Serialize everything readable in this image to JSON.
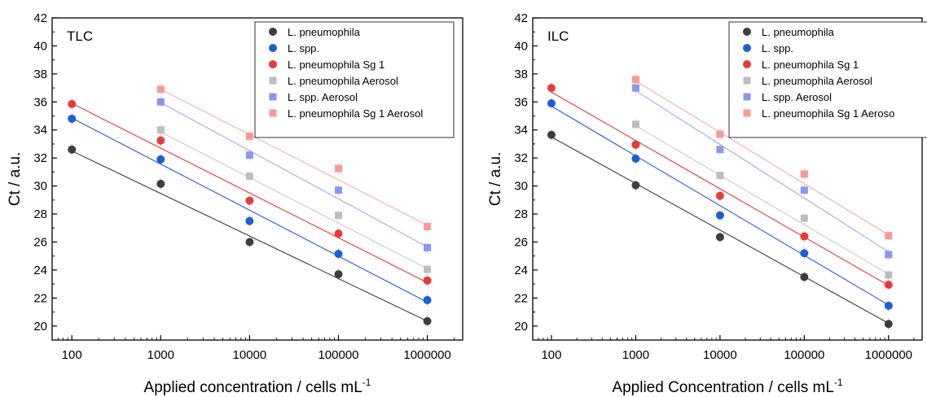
{
  "chart_data": [
    {
      "type": "scatter",
      "panel_label": "TLC",
      "xlabel": "Applied concentration / cells mL",
      "xlabel_sup": "-1",
      "ylabel": "Ct / a.u.",
      "x_scale": "log",
      "x_ticks": [
        100,
        1000,
        10000,
        100000,
        1000000
      ],
      "x_tick_labels": [
        "100",
        "1000",
        "10000",
        "100000",
        "1000000"
      ],
      "xlim": [
        60,
        2500000
      ],
      "ylim": [
        19,
        42
      ],
      "y_ticks": [
        20,
        22,
        24,
        26,
        28,
        30,
        32,
        34,
        36,
        38,
        40,
        42
      ],
      "legend_position": "top-right",
      "series": [
        {
          "name": "L. pneumophila",
          "marker": "circle",
          "color": "#3d3d3d",
          "line_color": "#3d3d3d",
          "x": [
            100,
            1000,
            10000,
            100000,
            1000000
          ],
          "y": [
            32.6,
            30.15,
            26.0,
            23.7,
            20.35
          ],
          "fit": [
            32.5,
            20.35
          ]
        },
        {
          "name": "L. spp.",
          "marker": "circle",
          "color": "#1a5fd6",
          "line_color": "#2a55e8",
          "x": [
            100,
            1000,
            10000,
            100000,
            1000000
          ],
          "y": [
            34.8,
            31.9,
            27.5,
            25.15,
            21.85
          ],
          "fit": [
            34.85,
            21.7
          ]
        },
        {
          "name": "L. pneumophila Sg 1",
          "marker": "circle",
          "color": "#e8393c",
          "line_color": "#e8393c",
          "x": [
            100,
            1000,
            10000,
            100000,
            1000000
          ],
          "y": [
            35.85,
            33.25,
            28.95,
            26.6,
            23.25
          ],
          "fit": [
            35.9,
            23.1
          ]
        },
        {
          "name": "L. pneumophila  Aerosol",
          "marker": "square",
          "color": "#bdbdbd",
          "line_color": "#c9c9c9",
          "x": [
            1000,
            10000,
            100000,
            1000000
          ],
          "y": [
            34.0,
            30.7,
            27.9,
            24.05
          ],
          "fit": [
            33.85,
            24.1
          ]
        },
        {
          "name": "L. spp. Aerosol",
          "marker": "square",
          "color": "#8c95f2",
          "line_color": "#a0a8f5",
          "x": [
            1000,
            10000,
            100000,
            1000000
          ],
          "y": [
            36.0,
            32.2,
            29.7,
            25.6
          ],
          "fit": [
            35.95,
            25.65
          ]
        },
        {
          "name": "L. pneumophila Sg 1 Aerosol",
          "marker": "square",
          "color": "#f99898",
          "line_color": "#f5aaaa",
          "x": [
            1000,
            10000,
            100000,
            1000000
          ],
          "y": [
            36.9,
            33.55,
            31.25,
            27.1
          ],
          "fit": [
            36.9,
            27.2
          ]
        }
      ]
    },
    {
      "type": "scatter",
      "panel_label": "ILC",
      "xlabel": "Applied Concentration / cells mL",
      "xlabel_sup": "-1",
      "ylabel": "Ct / a.u.",
      "x_scale": "log",
      "x_ticks": [
        100,
        1000,
        10000,
        100000,
        1000000
      ],
      "x_tick_labels": [
        "100",
        "1000",
        "10000",
        "100000",
        "1000000"
      ],
      "xlim": [
        60,
        2500000
      ],
      "ylim": [
        19,
        42
      ],
      "y_ticks": [
        20,
        22,
        24,
        26,
        28,
        30,
        32,
        34,
        36,
        38,
        40,
        42
      ],
      "legend_position": "top-right",
      "series": [
        {
          "name": "L. pneumophila",
          "marker": "circle",
          "color": "#3d3d3d",
          "line_color": "#3d3d3d",
          "x": [
            100,
            1000,
            10000,
            100000,
            1000000
          ],
          "y": [
            33.65,
            30.05,
            26.35,
            23.5,
            20.15
          ],
          "fit": [
            33.5,
            20.2
          ]
        },
        {
          "name": "L. spp.",
          "marker": "circle",
          "color": "#1a5fd6",
          "line_color": "#2a55e8",
          "x": [
            100,
            1000,
            10000,
            100000,
            1000000
          ],
          "y": [
            35.9,
            31.95,
            27.9,
            25.2,
            21.45
          ],
          "fit": [
            35.7,
            21.5
          ]
        },
        {
          "name": "L. pneumophila Sg 1",
          "marker": "circle",
          "color": "#e8393c",
          "line_color": "#e8393c",
          "x": [
            100,
            1000,
            10000,
            100000,
            1000000
          ],
          "y": [
            37.0,
            32.95,
            29.3,
            26.4,
            22.95
          ],
          "fit": [
            36.7,
            22.9
          ]
        },
        {
          "name": "L. pneumophila Aerosol",
          "marker": "square",
          "color": "#bdbdbd",
          "line_color": "#c9c9c9",
          "x": [
            1000,
            10000,
            100000,
            1000000
          ],
          "y": [
            34.4,
            30.75,
            27.7,
            23.65
          ],
          "fit": [
            34.3,
            23.7
          ]
        },
        {
          "name": "L. spp. Aerosol",
          "marker": "square",
          "color": "#8c95f2",
          "line_color": "#a0a8f5",
          "x": [
            1000,
            10000,
            100000,
            1000000
          ],
          "y": [
            37.0,
            32.6,
            29.7,
            25.1
          ],
          "fit": [
            36.8,
            25.3
          ]
        },
        {
          "name": "L. pneumophila Sg 1 Aeroso",
          "marker": "square",
          "color": "#f99898",
          "line_color": "#f5aaaa",
          "x": [
            1000,
            10000,
            100000,
            1000000
          ],
          "y": [
            37.6,
            33.7,
            30.85,
            26.45
          ],
          "fit": [
            37.5,
            26.5
          ]
        }
      ]
    }
  ]
}
